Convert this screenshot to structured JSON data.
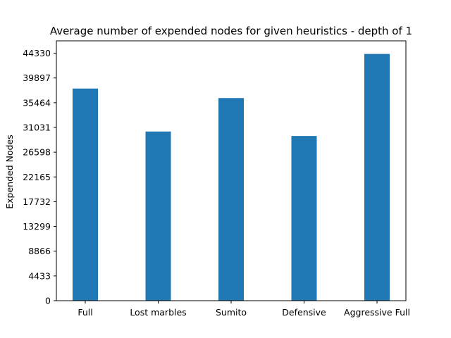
{
  "chart_data": {
    "type": "bar",
    "title": "Average number of expended nodes for given heuristics - depth of 1",
    "xlabel": "",
    "ylabel": "Expended Nodes",
    "categories": [
      "Full",
      "Lost marbles",
      "Sumito",
      "Defensive",
      "Aggressive Full"
    ],
    "values": [
      38000,
      30300,
      36300,
      29500,
      44200
    ],
    "yticks": [
      0,
      4433,
      8866,
      13299,
      17732,
      22165,
      26598,
      31031,
      35464,
      39897,
      44330
    ],
    "ylim": [
      0,
      44330
    ],
    "bar_color": "#1f77b4",
    "grid": false,
    "legend": "none"
  }
}
